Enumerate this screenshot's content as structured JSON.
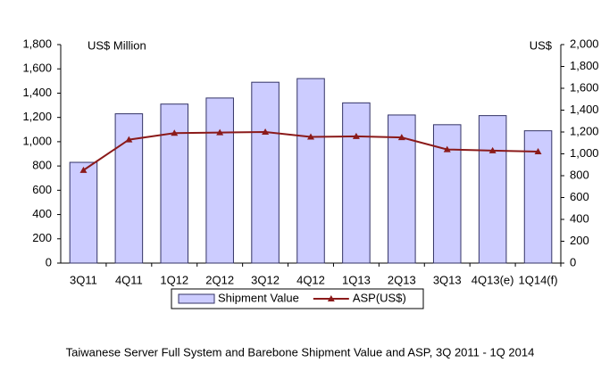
{
  "chart_data": {
    "type": "bar",
    "y_label": "US$ Million",
    "y2_label": "US$",
    "caption": "Taiwanese Server Full System and Barebone Shipment Value and ASP, 3Q 2011 - 1Q 2014",
    "categories": [
      "3Q11",
      "4Q11",
      "1Q12",
      "2Q12",
      "3Q12",
      "4Q12",
      "1Q13",
      "2Q13",
      "3Q13",
      "4Q13(e)",
      "1Q14(f)"
    ],
    "series": [
      {
        "name": "Shipment Value",
        "type": "bar",
        "color": "#ccccff",
        "values": [
          830,
          1230,
          1310,
          1360,
          1490,
          1520,
          1320,
          1220,
          1140,
          1215,
          1090
        ]
      },
      {
        "name": "ASP(US$)",
        "type": "line",
        "axis": "y2",
        "color": "#8b1a1a",
        "values": [
          850,
          1130,
          1190,
          1195,
          1200,
          1155,
          1160,
          1150,
          1040,
          1030,
          1020
        ]
      }
    ],
    "ylim": [
      0,
      1800
    ],
    "yticks": [
      0,
      200,
      400,
      600,
      800,
      {
        "value": 1000,
        "label": "1,000"
      },
      {
        "value": 1200,
        "label": "1,200"
      },
      {
        "value": 1400,
        "label": "1,400"
      },
      {
        "value": 1600,
        "label": "1,600"
      },
      {
        "value": 1800,
        "label": "1,800"
      }
    ],
    "y2lim": [
      0,
      2000
    ],
    "y2ticks": [
      0,
      200,
      400,
      600,
      800,
      {
        "value": 1000,
        "label": "1,000"
      },
      {
        "value": 1200,
        "label": "1,200"
      },
      {
        "value": 1400,
        "label": "1,400"
      },
      {
        "value": 1600,
        "label": "1,600"
      },
      {
        "value": 1800,
        "label": "1,800"
      },
      {
        "value": 2000,
        "label": "2,000"
      }
    ],
    "legend": "bottom"
  }
}
